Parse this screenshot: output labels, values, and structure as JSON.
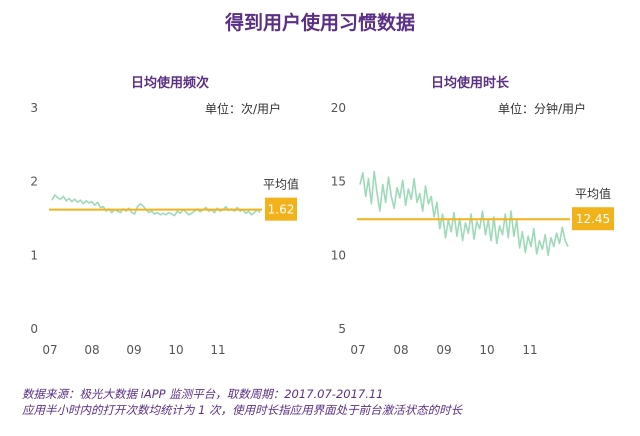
{
  "title": "得到用户使用习惯数据",
  "chart_data": [
    {
      "type": "line",
      "title": "日均使用频次",
      "unit_label": "单位：次/用户",
      "x_ticks": [
        "07",
        "08",
        "09",
        "10",
        "11"
      ],
      "y_ticks": [
        0,
        1,
        2,
        3
      ],
      "ylim": [
        0,
        3
      ],
      "series": [
        {
          "values": [
            1.75,
            1.82,
            1.78,
            1.76,
            1.8,
            1.74,
            1.77,
            1.73,
            1.76,
            1.72,
            1.75,
            1.7,
            1.74,
            1.71,
            1.73,
            1.68,
            1.72,
            1.65,
            1.66,
            1.6,
            1.63,
            1.58,
            1.62,
            1.6,
            1.58,
            1.63,
            1.6,
            1.64,
            1.58,
            1.56,
            1.66,
            1.7,
            1.67,
            1.62,
            1.58,
            1.6,
            1.56,
            1.58,
            1.55,
            1.57,
            1.55,
            1.58,
            1.56,
            1.54,
            1.6,
            1.57,
            1.62,
            1.59,
            1.55,
            1.57,
            1.6,
            1.63,
            1.59,
            1.62,
            1.65,
            1.6,
            1.62,
            1.58,
            1.64,
            1.6,
            1.62,
            1.66,
            1.61,
            1.63,
            1.6,
            1.65,
            1.6,
            1.62,
            1.57,
            1.6,
            1.55,
            1.58,
            1.62,
            1.58
          ]
        }
      ],
      "average": {
        "label": "平均值",
        "value": "1.62",
        "y": 1.62
      }
    },
    {
      "type": "line",
      "title": "日均使用时长",
      "unit_label": "单位：分钟/用户",
      "x_ticks": [
        "07",
        "08",
        "09",
        "10",
        "11"
      ],
      "y_ticks": [
        5,
        10,
        15,
        20
      ],
      "ylim": [
        5,
        20
      ],
      "series": [
        {
          "values": [
            14.8,
            15.6,
            14.0,
            15.2,
            13.5,
            15.7,
            14.2,
            13.0,
            14.8,
            13.6,
            15.3,
            14.0,
            13.2,
            14.6,
            13.9,
            15.1,
            13.4,
            14.5,
            13.8,
            15.2,
            13.6,
            14.2,
            13.0,
            14.7,
            13.5,
            14.0,
            12.6,
            13.6,
            11.8,
            12.8,
            11.2,
            12.4,
            11.6,
            12.9,
            11.3,
            12.5,
            11.0,
            12.2,
            11.5,
            12.8,
            11.1,
            12.3,
            11.8,
            13.0,
            11.4,
            12.4,
            11.0,
            12.6,
            10.8,
            12.0,
            11.4,
            12.8,
            11.2,
            13.0,
            11.3,
            12.4,
            10.5,
            11.6,
            10.2,
            11.3,
            10.6,
            11.8,
            10.1,
            11.0,
            10.4,
            11.4,
            10.0,
            11.2,
            10.6,
            11.5,
            10.8,
            11.9,
            11.0,
            10.6
          ]
        }
      ],
      "average": {
        "label": "平均值",
        "value": "12.45",
        "y": 12.45
      }
    }
  ],
  "footer": {
    "line1": "数据来源：极光大数据 iAPP 监测平台，取数周期：2017.07-2017.11",
    "line2": "应用半小时内的打开次数均统计为 1 次，使用时长指应用界面处于前台激活状态的时长"
  },
  "colors": {
    "series_line": "#9ddab7",
    "average_line": "#f2b21b",
    "badge_bg": "#f2b21b",
    "title": "#5b2f86",
    "axis_text": "#555555"
  }
}
